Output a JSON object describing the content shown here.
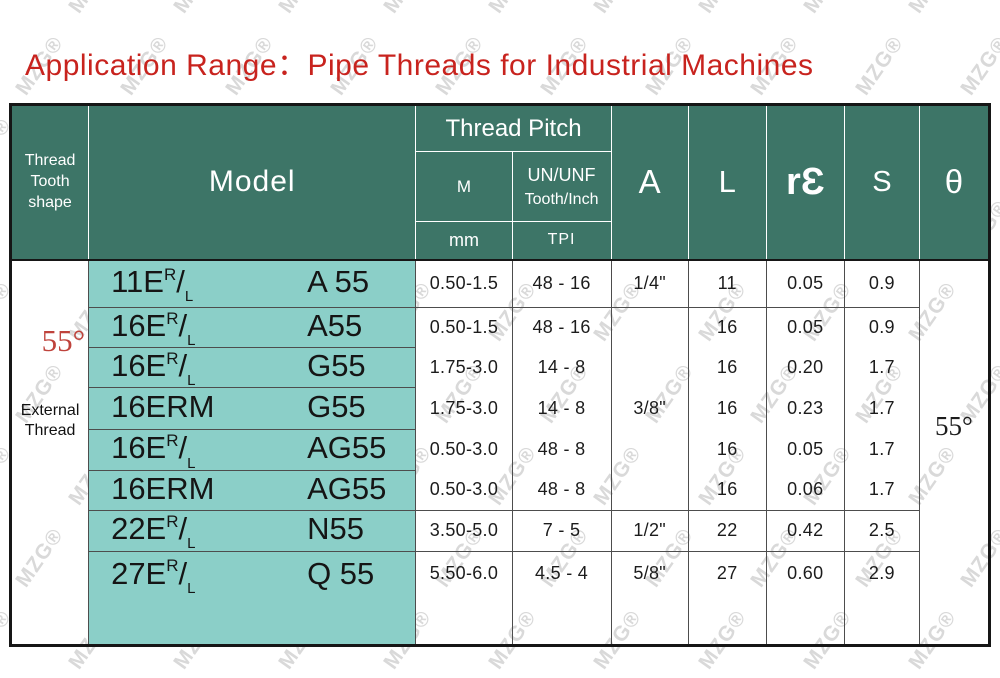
{
  "title": "Application Range：Pipe Threads for Industrial Machines",
  "watermark": {
    "text": "MZG®"
  },
  "colors": {
    "title_red": "#c8231e",
    "angle_red": "#bf433c",
    "header_green": "#3d7567",
    "model_teal": "#8bcfc8",
    "watermark_gray": "#d9d9d9"
  },
  "table": {
    "header": {
      "shape": "Thread Tooth shape",
      "model": "Model",
      "thread_pitch": "Thread Pitch",
      "m": "M",
      "unf_line1": "UN/UNF",
      "unf_line2": "Tooth/Inch",
      "mm": "mm",
      "tpi": "TPI",
      "a": "A",
      "l": "L",
      "re": "rƐ",
      "s": "S",
      "theta": "θ"
    },
    "shape_cell": {
      "angle": "55°",
      "label": "External Thread"
    },
    "theta_value": "55°",
    "rows": [
      {
        "model": {
          "prefix": "11E",
          "sup": "R",
          "slash": "/",
          "sub": "L",
          "suffix": "A 55"
        },
        "m": "0.50-1.5",
        "tpi": "48 - 16",
        "a": "1/4\"",
        "l": "11",
        "re": "0.05",
        "s": "0.9"
      },
      {
        "model": {
          "prefix": "16E",
          "sup": "R",
          "slash": "/",
          "sub": "L",
          "suffix": "A55"
        },
        "m": "0.50-1.5",
        "tpi": "48 - 16",
        "a": "3/8\"",
        "l": "16",
        "re": "0.05",
        "s": "0.9"
      },
      {
        "model": {
          "prefix": "16E",
          "sup": "R",
          "slash": "/",
          "sub": "L",
          "suffix": "G55"
        },
        "m": "1.75-3.0",
        "tpi": "14 - 8",
        "l": "16",
        "re": "0.20",
        "s": "1.7"
      },
      {
        "model": {
          "prefix": "16ERM",
          "sup": "",
          "slash": "",
          "sub": "",
          "suffix": "G55"
        },
        "m": "1.75-3.0",
        "tpi": "14 - 8",
        "l": "16",
        "re": "0.23",
        "s": "1.7"
      },
      {
        "model": {
          "prefix": "16E",
          "sup": "R",
          "slash": "/",
          "sub": "L",
          "suffix": "AG55"
        },
        "m": "0.50-3.0",
        "tpi": "48 - 8",
        "l": "16",
        "re": "0.05",
        "s": "1.7"
      },
      {
        "model": {
          "prefix": "16ERM",
          "sup": "",
          "slash": "",
          "sub": "",
          "suffix": "AG55"
        },
        "m": "0.50-3.0",
        "tpi": "48 - 8",
        "l": "16",
        "re": "0.06",
        "s": "1.7"
      },
      {
        "model": {
          "prefix": "22E",
          "sup": "R",
          "slash": "/",
          "sub": "L",
          "suffix": "N55"
        },
        "m": "3.50-5.0",
        "tpi": "7 - 5",
        "a": "1/2\"",
        "l": "22",
        "re": "0.42",
        "s": "2.5"
      },
      {
        "model": {
          "prefix": "27E",
          "sup": "R",
          "slash": "/",
          "sub": "L",
          "suffix": "Q 55"
        },
        "m": "5.50-6.0",
        "tpi": "4.5 - 4",
        "a": "5/8\"",
        "l": "27",
        "re": "0.60",
        "s": "2.9"
      }
    ]
  }
}
